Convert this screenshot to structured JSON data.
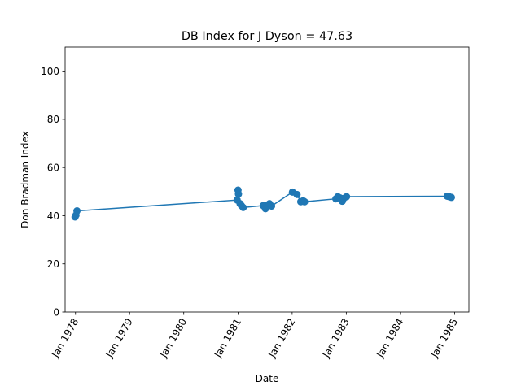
{
  "chart_data": {
    "type": "line",
    "title": "DB Index for J Dyson = 47.63",
    "xlabel": "Date",
    "ylabel": "Don Bradman Index",
    "x_ticks": [
      "Jan 1978",
      "Jan 1979",
      "Jan 1980",
      "Jan 1981",
      "Jan 1982",
      "Jan 1983",
      "Jan 1984",
      "Jan 1985"
    ],
    "y_ticks": [
      "0",
      "20",
      "40",
      "60",
      "80",
      "100"
    ],
    "xlim": [
      "1977-10-23",
      "1985-04-07"
    ],
    "ylim": [
      0,
      110
    ],
    "grid": false,
    "color": "#1f77b4",
    "series": [
      {
        "x": [
          "1977-12-29",
          "1978-01-04",
          "1978-01-11",
          "1980-12-26",
          "1981-01-01",
          "1981-01-04",
          "1981-01-15",
          "1981-01-24",
          "1981-02-05",
          "1981-06-20",
          "1981-07-05",
          "1981-07-18",
          "1981-08-01",
          "1981-08-15",
          "1982-01-03",
          "1982-02-03",
          "1982-02-28",
          "1982-03-16",
          "1982-03-26",
          "1982-10-23",
          "1982-11-05",
          "1982-11-20",
          "1982-12-05",
          "1982-12-15",
          "1983-01-03",
          "1984-11-12",
          "1984-11-25",
          "1984-12-10"
        ],
        "y": [
          39.5,
          40.2,
          42.0,
          46.5,
          50.6,
          49.0,
          45.0,
          44.2,
          43.4,
          44.2,
          42.9,
          44.3,
          45.0,
          44.0,
          49.8,
          48.8,
          45.8,
          46.2,
          45.8,
          47.0,
          47.9,
          47.4,
          46.0,
          47.2,
          47.9,
          48.1,
          47.9,
          47.6
        ]
      }
    ]
  }
}
